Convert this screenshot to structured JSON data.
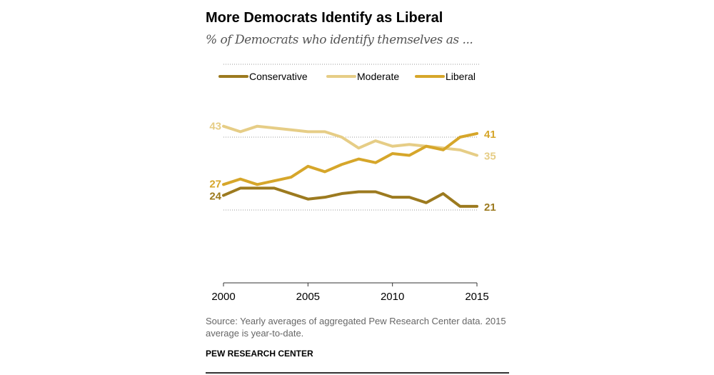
{
  "title": "More Democrats Identify as Liberal",
  "subtitle": "% of Democrats who identify themselves as ...",
  "source": "Source: Yearly averages of aggregated Pew Research Center data. 2015 average is year-to-date.",
  "org": "PEW RESEARCH CENTER",
  "chart_data": {
    "type": "line",
    "x": [
      2000,
      2001,
      2002,
      2003,
      2004,
      2005,
      2006,
      2007,
      2008,
      2009,
      2010,
      2011,
      2012,
      2013,
      2014,
      2015
    ],
    "xticks": [
      "2000",
      "2005",
      "2010",
      "2015"
    ],
    "ylim": [
      0,
      60
    ],
    "gridlines": [
      20,
      40,
      60
    ],
    "legend": "top",
    "series": [
      {
        "name": "Conservative",
        "color": "#9c7a1f",
        "values": [
          24,
          26,
          26,
          26,
          24.5,
          23,
          23.5,
          24.5,
          25,
          25,
          23.5,
          23.5,
          22,
          24.5,
          21,
          21
        ],
        "start_label": "24",
        "end_label": "21"
      },
      {
        "name": "Moderate",
        "color": "#e6cd86",
        "values": [
          43,
          41.5,
          43,
          42.5,
          42,
          41.5,
          41.5,
          40,
          37,
          39,
          37.5,
          38,
          37.5,
          37,
          36.5,
          35
        ],
        "start_label": "43",
        "end_label": "35"
      },
      {
        "name": "Liberal",
        "color": "#d6a62a",
        "values": [
          27,
          28.5,
          27,
          28,
          29,
          32,
          30.5,
          32.5,
          34,
          33,
          35.5,
          35,
          37.5,
          36.5,
          40,
          41
        ],
        "start_label": "27",
        "end_label": "41"
      }
    ]
  }
}
